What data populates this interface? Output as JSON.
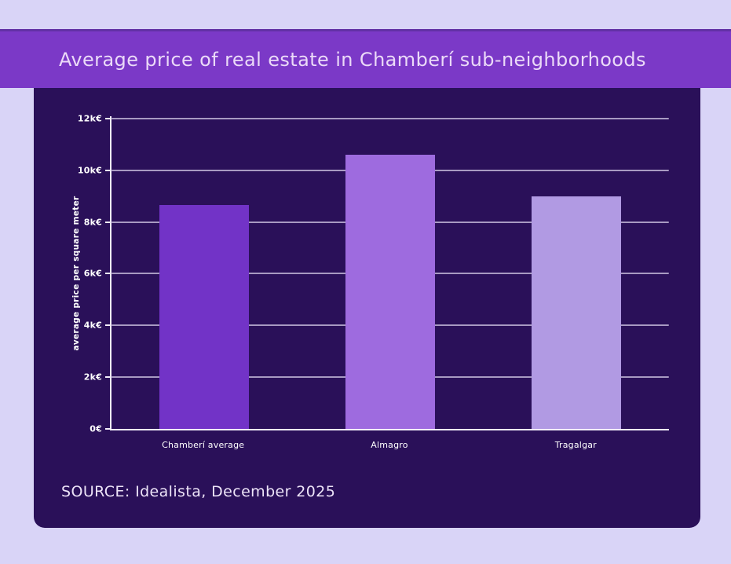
{
  "title": "Average price of real estate in Chamberí sub-neighborhoods",
  "source": "SOURCE: Idealista, December 2025",
  "colors": {
    "page_bg": "#D9D4F7",
    "banner_bg": "#7B39C7",
    "banner_border": "#6230A5",
    "banner_text": "#EBDAF8",
    "panel_bg": "#2A1059",
    "axis": "#F4EFFC",
    "gridline": "rgba(236,229,250,0.65)",
    "tick_text": "#FFFFFF",
    "source_text": "#EDE4F8"
  },
  "chart_data": {
    "type": "bar",
    "title": "Average price of real estate in Chamberí sub-neighborhoods",
    "categories": [
      "Chamberí average",
      "Almagro",
      "Tragalgar"
    ],
    "values": [
      8650,
      10600,
      9000
    ],
    "bar_colors": [
      "#7233C7",
      "#9E6BDF",
      "#B19AE3"
    ],
    "xlabel": "",
    "ylabel": "average price per square meter",
    "ylim": [
      0,
      12150
    ],
    "yticks": [
      {
        "value": 0,
        "label": "0€"
      },
      {
        "value": 2000,
        "label": "2k€"
      },
      {
        "value": 4000,
        "label": "4k€"
      },
      {
        "value": 6000,
        "label": "6k€"
      },
      {
        "value": 8000,
        "label": "8k€"
      },
      {
        "value": 10000,
        "label": "10k€"
      },
      {
        "value": 12000,
        "label": "12k€"
      }
    ],
    "grid": true,
    "legend": false
  }
}
